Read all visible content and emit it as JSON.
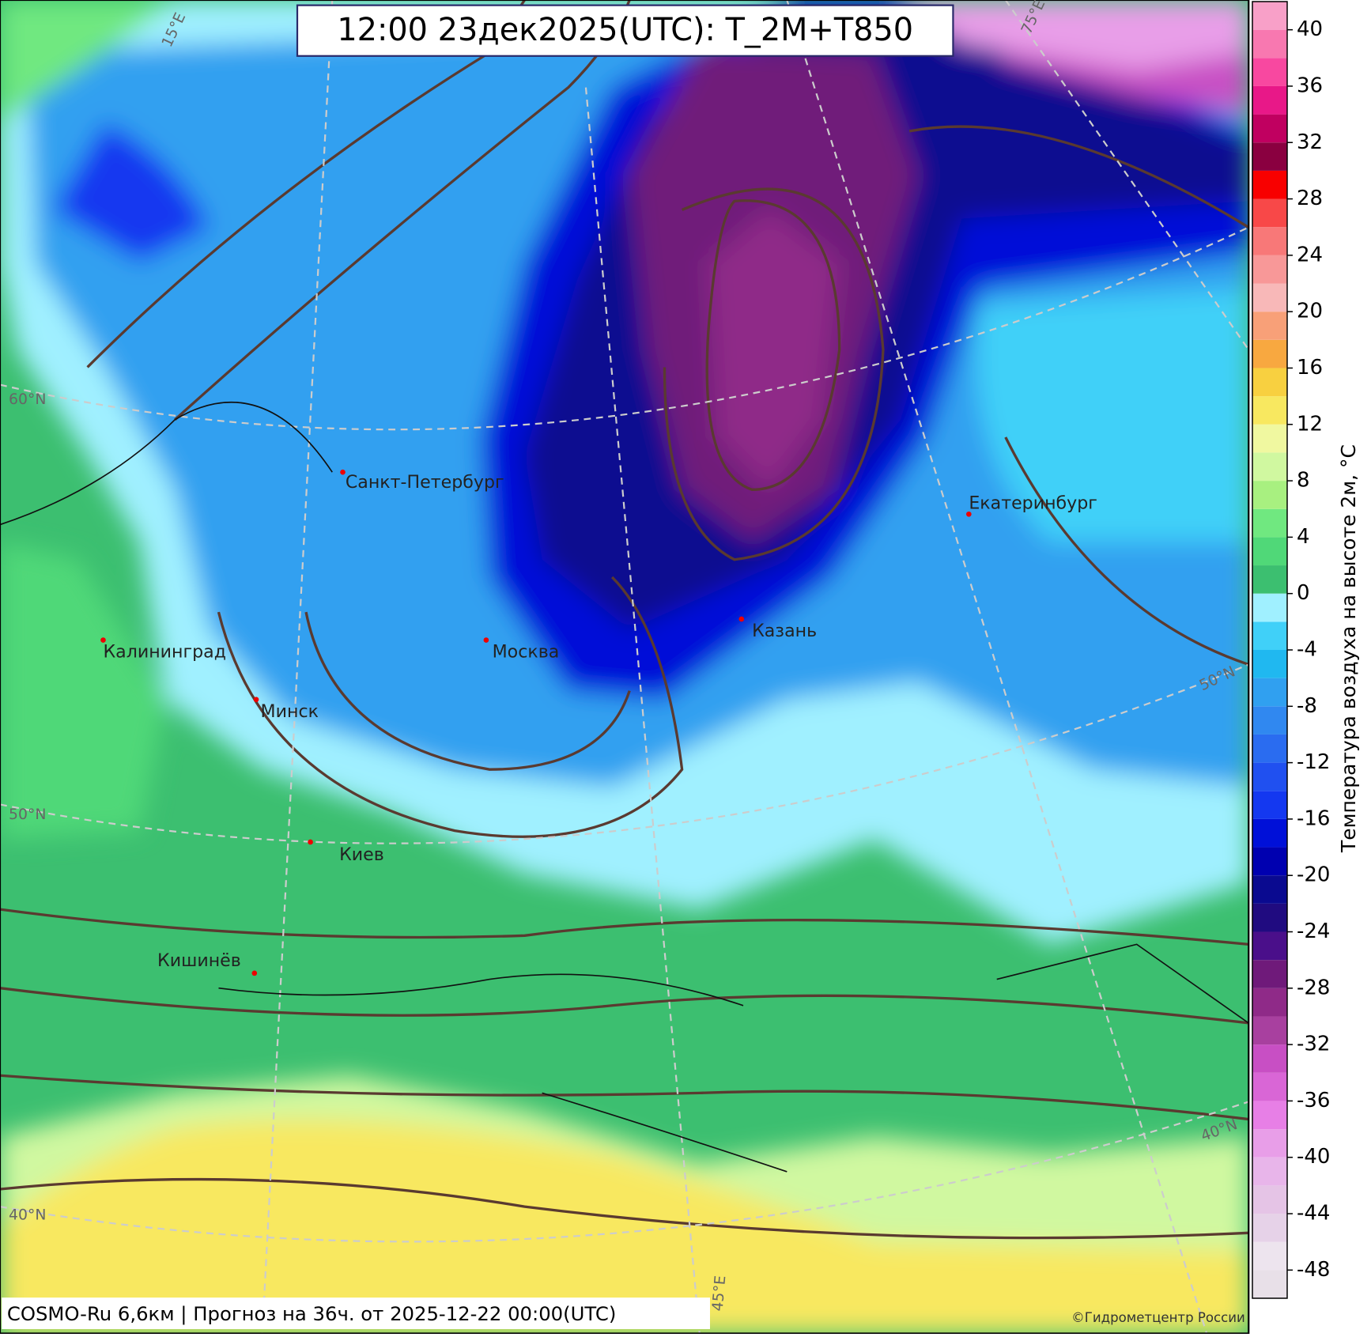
{
  "title": "12:00 23дек2025(UTC): T_2M+T850",
  "footer": "COSMO-Ru 6,6км | Прогноз на  36ч. от 2025-12-22 00:00(UTC)",
  "copyright": "©Гидрометцентр России",
  "colorbar": {
    "label": "Температура воздуха на высоте 2м, °С",
    "lim": [
      -50,
      42
    ],
    "ticks": [
      40,
      36,
      32,
      28,
      24,
      20,
      16,
      12,
      8,
      4,
      0,
      -4,
      -8,
      -12,
      -16,
      -20,
      -24,
      -28,
      -32,
      -36,
      -40,
      -44,
      -48
    ],
    "colors": [
      "#e8e0e8",
      "#ede4ee",
      "#e6d2e8",
      "#e5c4e6",
      "#e8b5ea",
      "#e89ee8",
      "#e77fe6",
      "#d966d6",
      "#c84fc4",
      "#a8409f",
      "#8f2a88",
      "#6f1a7a",
      "#4a0f8a",
      "#200b80",
      "#0a0a90",
      "#0000b0",
      "#0010d8",
      "#1438f0",
      "#2050f0",
      "#2a6cf0",
      "#3088f0",
      "#30a0f0",
      "#20b8f0",
      "#40d0f8",
      "#a0f0ff",
      "#3cbf70",
      "#50d878",
      "#70e880",
      "#a8f080",
      "#d0f8a0",
      "#f0f8a0",
      "#f8e860",
      "#f8d040",
      "#f8a840",
      "#f8a078",
      "#f8b8b8",
      "#f89898",
      "#f87878",
      "#f84848",
      "#f80000",
      "#8a0040",
      "#c00060",
      "#e81888",
      "#f848a0",
      "#f878b0",
      "#f8a0c8"
    ]
  },
  "cities": [
    "Санкт-Петербург",
    "Калининград",
    "Москва",
    "Минск",
    "Киев",
    "Кишинёв",
    "Казань",
    "Екатеринбург"
  ],
  "graticule": [
    "60°N",
    "50°N",
    "40°N",
    "15°E",
    "75°E",
    "45°E",
    "50°N",
    "40°N"
  ]
}
